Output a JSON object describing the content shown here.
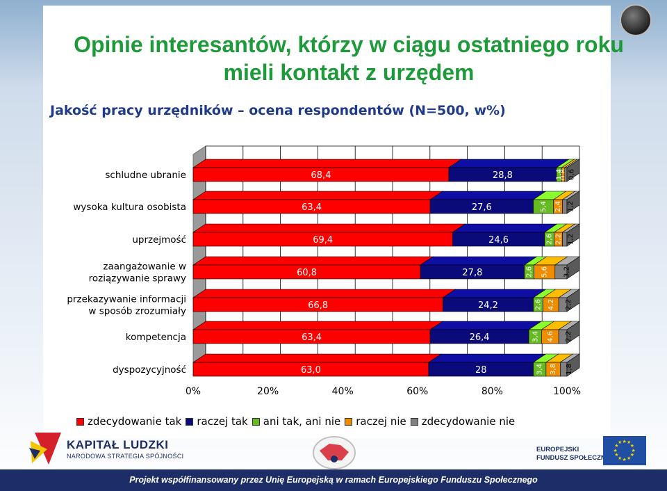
{
  "page": {
    "title_line1": "Opinie interesantów, którzy w ciągu ostatniego roku",
    "title_line2": "mieli kontakt z urzędem",
    "subtitle": "Jakość pracy urzędników – ocena respondentów (N=500, w%)"
  },
  "footer": {
    "text": "Projekt współfinansowany przez Unię Europejską w ramach Europejskiego Funduszu Społecznego",
    "kl_line1": "KAPITAŁ LUDZKI",
    "kl_line2": "NARODOWA STRATEGIA SPÓJNOŚCI",
    "ue_line1": "EUROPEJSKI",
    "ue_line2": "FUNDUSZ SPOŁECZNY"
  },
  "colors": {
    "zdecydowanie_tak": "#ff0000",
    "raczej_tak": "#0a0a7a",
    "ani_tak_ani_nie": "#66bb22",
    "raczej_nie": "#f08c00",
    "zdecydowanie_nie": "#808080",
    "title_green": "#1f9a3a",
    "subtitle_blue": "#1f3a8a"
  },
  "chart_data": {
    "type": "bar",
    "orientation": "horizontal",
    "stacked": "percent",
    "categories": [
      [
        "schludne ubranie"
      ],
      [
        "wysoka kultura osobista"
      ],
      [
        "uprzejmość"
      ],
      [
        "zaangażowanie w",
        "roziązywanie sprawy"
      ],
      [
        "przekazywanie informacji",
        "w sposób zrozumiały"
      ],
      [
        "kompetencja"
      ],
      [
        "dyspozycyjność"
      ]
    ],
    "series": [
      {
        "name": "zdecydowanie tak",
        "color": "#ff0000",
        "values": [
          68.4,
          63.4,
          69.4,
          60.8,
          66.8,
          63.4,
          63.0
        ],
        "labels": [
          "68,4",
          "63,4",
          "69,4",
          "60,8",
          "66,8",
          "63,4",
          "63,0"
        ]
      },
      {
        "name": "raczej tak",
        "color": "#0a0a7a",
        "values": [
          28.8,
          27.6,
          24.6,
          27.8,
          24.2,
          26.4,
          28.0
        ],
        "labels": [
          "28,8",
          "27,6",
          "24,6",
          "27,8",
          "24,2",
          "26,4",
          "28"
        ]
      },
      {
        "name": "ani tak, ani nie",
        "color": "#66bb22",
        "values": [
          1.4,
          5.4,
          2.6,
          2.6,
          2.6,
          3.4,
          3.4
        ],
        "labels": [
          "1,4",
          "5,4",
          "2,6",
          "2,6",
          "2,6",
          "3,4",
          "3,4"
        ]
      },
      {
        "name": "raczej nie",
        "color": "#f08c00",
        "values": [
          0.8,
          2.4,
          2.2,
          5.6,
          4.2,
          4.6,
          3.8
        ],
        "labels": [
          "0,8",
          "2,4",
          "2,2",
          "5,6",
          "4,2",
          "4,6",
          "3,8"
        ]
      },
      {
        "name": "zdecydowanie nie",
        "color": "#808080",
        "values": [
          0.6,
          1.2,
          1.2,
          3.2,
          2.2,
          2.2,
          1.8
        ],
        "labels": [
          "0,6",
          "1,2",
          "1,2",
          "3,2",
          "2,2",
          "2,2",
          "1,8"
        ]
      }
    ],
    "xlim": [
      0,
      100
    ],
    "xticks": [
      "0%",
      "20%",
      "40%",
      "60%",
      "80%",
      "100%"
    ],
    "grid": true,
    "legend_position": "bottom"
  }
}
